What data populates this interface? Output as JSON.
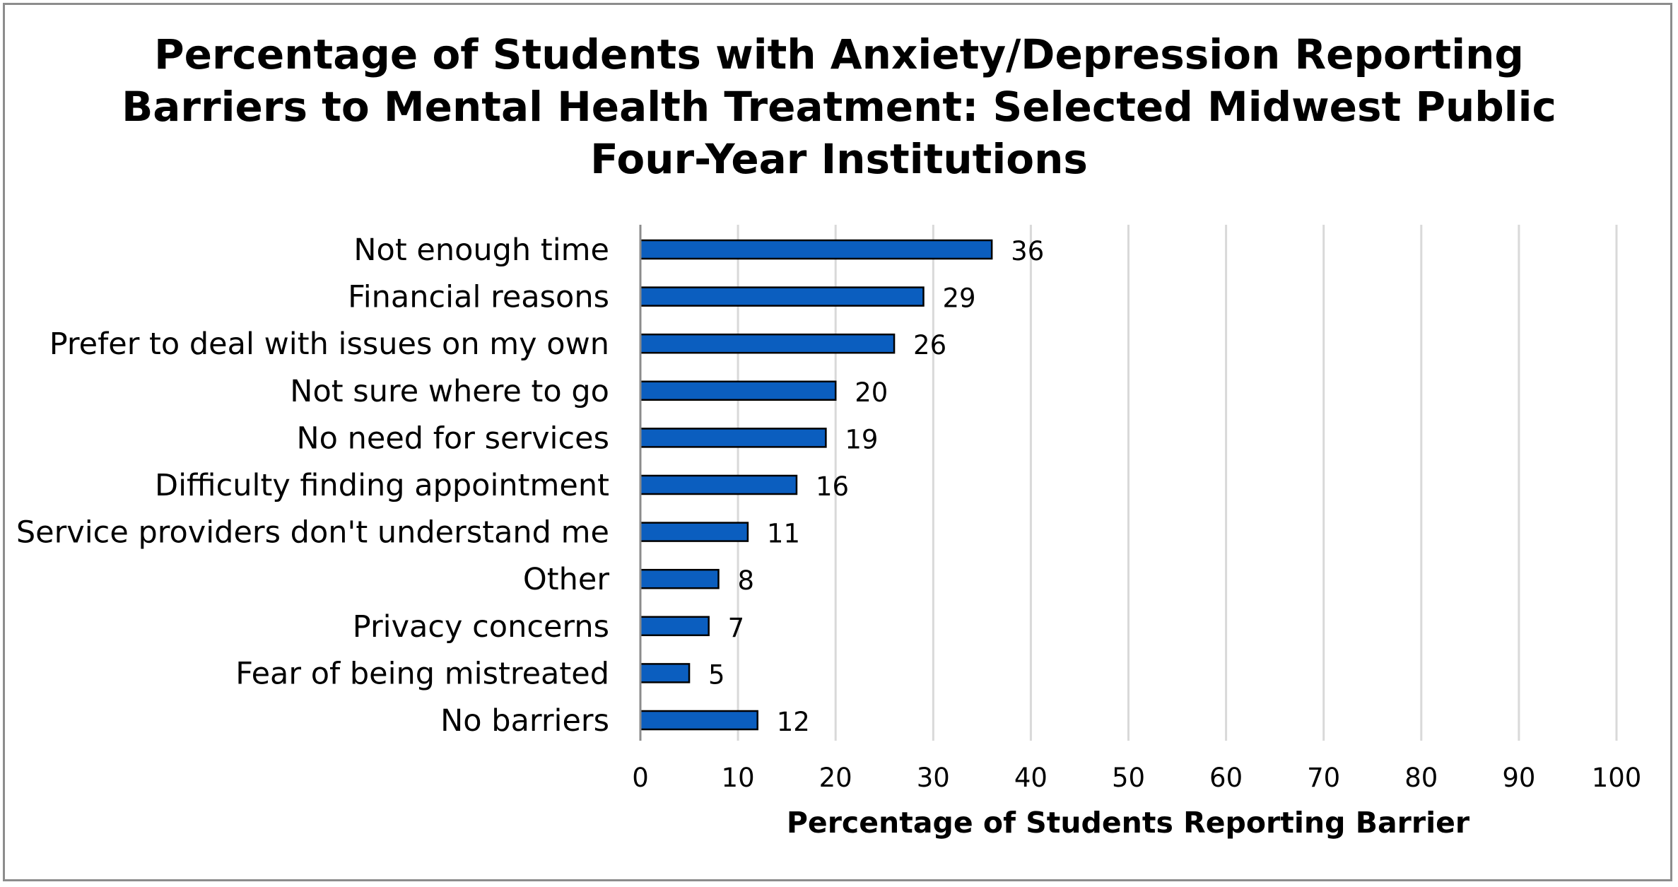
{
  "chart_data": {
    "type": "bar",
    "orientation": "horizontal",
    "title_lines": [
      "Percentage of Students with Anxiety/Depression Reporting",
      "Barriers to Mental Health Treatment: Selected Midwest Public",
      "Four-Year Institutions"
    ],
    "categories": [
      "Not enough time",
      "Financial reasons",
      "Prefer to deal with issues on my own",
      "Not sure where to go",
      "No need for services",
      "Difficulty finding appointment",
      "Service providers don't understand me",
      "Other",
      "Privacy concerns",
      "Fear of being mistreated",
      "No barriers"
    ],
    "values": [
      36,
      29,
      26,
      20,
      19,
      16,
      11,
      8,
      7,
      5,
      12
    ],
    "xlabel": "Percentage of Students Reporting Barrier",
    "ylabel": "",
    "xlim": [
      0,
      100
    ],
    "xticks": [
      0,
      10,
      20,
      30,
      40,
      50,
      60,
      70,
      80,
      90,
      100
    ],
    "grid": true,
    "legend": "none",
    "bar_color": "#0b5ebf",
    "bar_edge_color": "#000000",
    "grid_color": "#d9d9d9"
  }
}
